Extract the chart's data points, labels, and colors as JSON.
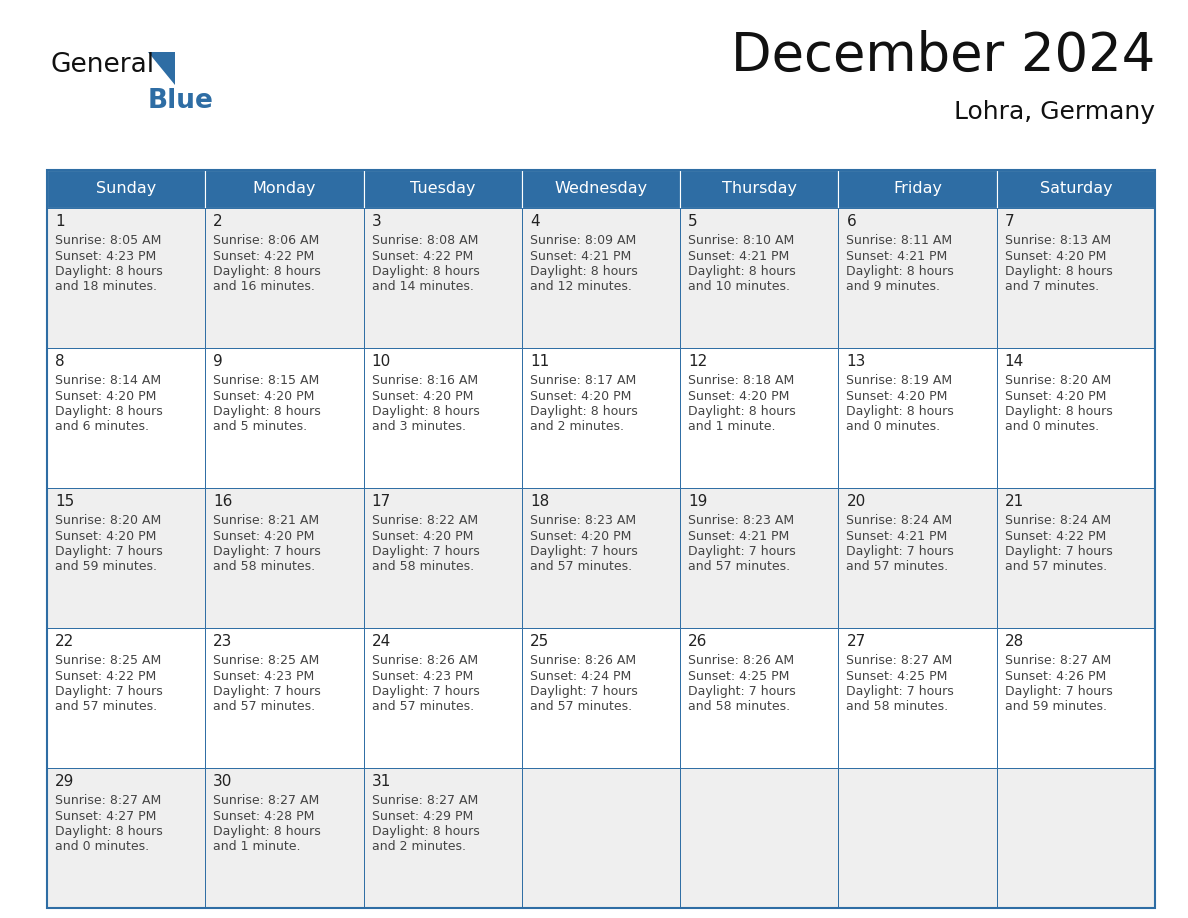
{
  "title": "December 2024",
  "subtitle": "Lohra, Germany",
  "days_of_week": [
    "Sunday",
    "Monday",
    "Tuesday",
    "Wednesday",
    "Thursday",
    "Friday",
    "Saturday"
  ],
  "header_bg": "#2E6DA4",
  "header_text": "#FFFFFF",
  "cell_bg_odd": "#EFEFEF",
  "cell_bg_even": "#FFFFFF",
  "day_number_color": "#222222",
  "text_color": "#444444",
  "border_color": "#2E6DA4",
  "gb_blue": "#2E6DA4",
  "gb_black": "#1a1a1a",
  "calendar_data": [
    [
      {
        "day": "1",
        "sunrise": "8:05 AM",
        "sunset": "4:23 PM",
        "dl1": "Daylight: 8 hours",
        "dl2": "and 18 minutes."
      },
      {
        "day": "2",
        "sunrise": "8:06 AM",
        "sunset": "4:22 PM",
        "dl1": "Daylight: 8 hours",
        "dl2": "and 16 minutes."
      },
      {
        "day": "3",
        "sunrise": "8:08 AM",
        "sunset": "4:22 PM",
        "dl1": "Daylight: 8 hours",
        "dl2": "and 14 minutes."
      },
      {
        "day": "4",
        "sunrise": "8:09 AM",
        "sunset": "4:21 PM",
        "dl1": "Daylight: 8 hours",
        "dl2": "and 12 minutes."
      },
      {
        "day": "5",
        "sunrise": "8:10 AM",
        "sunset": "4:21 PM",
        "dl1": "Daylight: 8 hours",
        "dl2": "and 10 minutes."
      },
      {
        "day": "6",
        "sunrise": "8:11 AM",
        "sunset": "4:21 PM",
        "dl1": "Daylight: 8 hours",
        "dl2": "and 9 minutes."
      },
      {
        "day": "7",
        "sunrise": "8:13 AM",
        "sunset": "4:20 PM",
        "dl1": "Daylight: 8 hours",
        "dl2": "and 7 minutes."
      }
    ],
    [
      {
        "day": "8",
        "sunrise": "8:14 AM",
        "sunset": "4:20 PM",
        "dl1": "Daylight: 8 hours",
        "dl2": "and 6 minutes."
      },
      {
        "day": "9",
        "sunrise": "8:15 AM",
        "sunset": "4:20 PM",
        "dl1": "Daylight: 8 hours",
        "dl2": "and 5 minutes."
      },
      {
        "day": "10",
        "sunrise": "8:16 AM",
        "sunset": "4:20 PM",
        "dl1": "Daylight: 8 hours",
        "dl2": "and 3 minutes."
      },
      {
        "day": "11",
        "sunrise": "8:17 AM",
        "sunset": "4:20 PM",
        "dl1": "Daylight: 8 hours",
        "dl2": "and 2 minutes."
      },
      {
        "day": "12",
        "sunrise": "8:18 AM",
        "sunset": "4:20 PM",
        "dl1": "Daylight: 8 hours",
        "dl2": "and 1 minute."
      },
      {
        "day": "13",
        "sunrise": "8:19 AM",
        "sunset": "4:20 PM",
        "dl1": "Daylight: 8 hours",
        "dl2": "and 0 minutes."
      },
      {
        "day": "14",
        "sunrise": "8:20 AM",
        "sunset": "4:20 PM",
        "dl1": "Daylight: 8 hours",
        "dl2": "and 0 minutes."
      }
    ],
    [
      {
        "day": "15",
        "sunrise": "8:20 AM",
        "sunset": "4:20 PM",
        "dl1": "Daylight: 7 hours",
        "dl2": "and 59 minutes."
      },
      {
        "day": "16",
        "sunrise": "8:21 AM",
        "sunset": "4:20 PM",
        "dl1": "Daylight: 7 hours",
        "dl2": "and 58 minutes."
      },
      {
        "day": "17",
        "sunrise": "8:22 AM",
        "sunset": "4:20 PM",
        "dl1": "Daylight: 7 hours",
        "dl2": "and 58 minutes."
      },
      {
        "day": "18",
        "sunrise": "8:23 AM",
        "sunset": "4:20 PM",
        "dl1": "Daylight: 7 hours",
        "dl2": "and 57 minutes."
      },
      {
        "day": "19",
        "sunrise": "8:23 AM",
        "sunset": "4:21 PM",
        "dl1": "Daylight: 7 hours",
        "dl2": "and 57 minutes."
      },
      {
        "day": "20",
        "sunrise": "8:24 AM",
        "sunset": "4:21 PM",
        "dl1": "Daylight: 7 hours",
        "dl2": "and 57 minutes."
      },
      {
        "day": "21",
        "sunrise": "8:24 AM",
        "sunset": "4:22 PM",
        "dl1": "Daylight: 7 hours",
        "dl2": "and 57 minutes."
      }
    ],
    [
      {
        "day": "22",
        "sunrise": "8:25 AM",
        "sunset": "4:22 PM",
        "dl1": "Daylight: 7 hours",
        "dl2": "and 57 minutes."
      },
      {
        "day": "23",
        "sunrise": "8:25 AM",
        "sunset": "4:23 PM",
        "dl1": "Daylight: 7 hours",
        "dl2": "and 57 minutes."
      },
      {
        "day": "24",
        "sunrise": "8:26 AM",
        "sunset": "4:23 PM",
        "dl1": "Daylight: 7 hours",
        "dl2": "and 57 minutes."
      },
      {
        "day": "25",
        "sunrise": "8:26 AM",
        "sunset": "4:24 PM",
        "dl1": "Daylight: 7 hours",
        "dl2": "and 57 minutes."
      },
      {
        "day": "26",
        "sunrise": "8:26 AM",
        "sunset": "4:25 PM",
        "dl1": "Daylight: 7 hours",
        "dl2": "and 58 minutes."
      },
      {
        "day": "27",
        "sunrise": "8:27 AM",
        "sunset": "4:25 PM",
        "dl1": "Daylight: 7 hours",
        "dl2": "and 58 minutes."
      },
      {
        "day": "28",
        "sunrise": "8:27 AM",
        "sunset": "4:26 PM",
        "dl1": "Daylight: 7 hours",
        "dl2": "and 59 minutes."
      }
    ],
    [
      {
        "day": "29",
        "sunrise": "8:27 AM",
        "sunset": "4:27 PM",
        "dl1": "Daylight: 8 hours",
        "dl2": "and 0 minutes."
      },
      {
        "day": "30",
        "sunrise": "8:27 AM",
        "sunset": "4:28 PM",
        "dl1": "Daylight: 8 hours",
        "dl2": "and 1 minute."
      },
      {
        "day": "31",
        "sunrise": "8:27 AM",
        "sunset": "4:29 PM",
        "dl1": "Daylight: 8 hours",
        "dl2": "and 2 minutes."
      },
      null,
      null,
      null,
      null
    ]
  ]
}
